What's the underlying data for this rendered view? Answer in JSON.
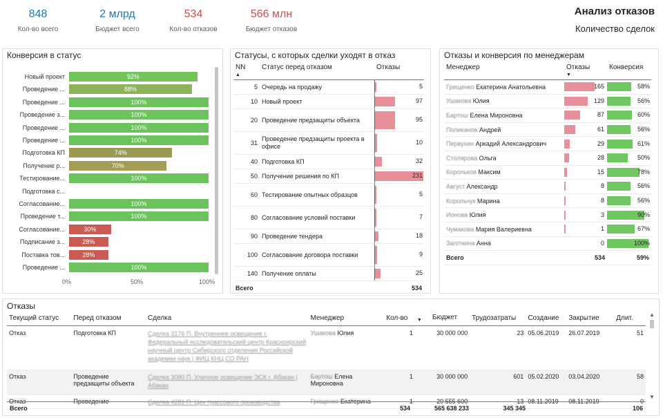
{
  "kpis": [
    {
      "value": "848",
      "label": "Кол-во всего",
      "color": "#1f77b4"
    },
    {
      "value": "2 млрд",
      "label": "Бюджет всего",
      "color": "#1f77b4"
    },
    {
      "value": "534",
      "label": "Кол-во отказов",
      "color": "#c0504d"
    },
    {
      "value": "566 млн",
      "label": "Бюджет отказов",
      "color": "#c0504d"
    }
  ],
  "header": {
    "title": "Анализ отказов",
    "subtitle": "Количество сделок"
  },
  "conversion": {
    "title": "Конверсия в статус",
    "axis": [
      "0%",
      "50%",
      "100%"
    ],
    "rows": [
      {
        "label": "Новый проект",
        "value": 92,
        "text": "92%",
        "color": "#72c45b"
      },
      {
        "label": "Проведение ...",
        "value": 88,
        "text": "88%",
        "color": "#8db35a"
      },
      {
        "label": "Проведение ...",
        "value": 100,
        "text": "100%",
        "color": "#6cc35d"
      },
      {
        "label": "Проведение з...",
        "value": 100,
        "text": "100%",
        "color": "#6cc35d"
      },
      {
        "label": "Проведение ...",
        "value": 100,
        "text": "100%",
        "color": "#6cc35d"
      },
      {
        "label": "Проведение ...",
        "value": 100,
        "text": "100%",
        "color": "#6cc35d"
      },
      {
        "label": "Подготовка КП",
        "value": 74,
        "text": "74%",
        "color": "#9a9a55"
      },
      {
        "label": "Получение р...",
        "value": 70,
        "text": "70%",
        "color": "#a49b55"
      },
      {
        "label": "Тестирование...",
        "value": 100,
        "text": "100%",
        "color": "#6cc35d"
      },
      {
        "label": "Подготовка с...",
        "value": 0,
        "text": "",
        "color": "#6cc35d"
      },
      {
        "label": "Согласование...",
        "value": 100,
        "text": "100%",
        "color": "#6cc35d"
      },
      {
        "label": "Проведение т...",
        "value": 100,
        "text": "100%",
        "color": "#6cc35d"
      },
      {
        "label": "Согласование...",
        "value": 30,
        "text": "30%",
        "color": "#c95b54"
      },
      {
        "label": "Подписание з...",
        "value": 28,
        "text": "28%",
        "color": "#c95b54"
      },
      {
        "label": "Поставка тов...",
        "value": 28,
        "text": "28%",
        "color": "#c95b54"
      },
      {
        "label": "Проведение ...",
        "value": 100,
        "text": "100%",
        "color": "#6cc35d"
      }
    ]
  },
  "statuses": {
    "title": "Статусы, с которых сделки уходят в отказ",
    "headers": [
      "NN",
      "Статус перед отказом",
      "Отказы"
    ],
    "max": 231,
    "rows": [
      {
        "nn": "5",
        "status": "Очередь на продажу",
        "value": 5
      },
      {
        "nn": "10",
        "status": "Новый проект",
        "value": 97
      },
      {
        "nn": "20",
        "status": "Проведение предзащиты объекта",
        "value": 95
      },
      {
        "nn": "31",
        "status": "Проведение предзащиты проекта в офисе",
        "value": 10
      },
      {
        "nn": "40",
        "status": "Подготовка КП",
        "value": 32
      },
      {
        "nn": "50",
        "status": "Получение решения по КП",
        "value": 231
      },
      {
        "nn": "60",
        "status": "Тестирование опытных образцов",
        "value": 5
      },
      {
        "nn": "80",
        "status": "Согласование условий поставки",
        "value": 7
      },
      {
        "nn": "90",
        "status": "Проведение тендера",
        "value": 18
      },
      {
        "nn": "100",
        "status": "Согласование договора поставки",
        "value": 9
      },
      {
        "nn": "140",
        "status": "Получение оплаты",
        "value": 25
      }
    ],
    "total_label": "Всего",
    "total": "534"
  },
  "managers": {
    "title": "Отказы и конверсия по менеджерам",
    "headers": [
      "Менеджер",
      "Отказы",
      "Конверсия"
    ],
    "max": 165,
    "rows": [
      {
        "hidden": "Грищенко",
        "name": "Екатерина Анатольевна",
        "value": 165,
        "conv": 58,
        "conv_text": "58%"
      },
      {
        "hidden": "Ушакова",
        "name": "Юлия",
        "value": 129,
        "conv": 56,
        "conv_text": "56%"
      },
      {
        "hidden": "Бартош",
        "name": "Елена Мироновна",
        "value": 87,
        "conv": 60,
        "conv_text": "60%"
      },
      {
        "hidden": "Поликанов",
        "name": "Андрей",
        "value": 61,
        "conv": 56,
        "conv_text": "56%"
      },
      {
        "hidden": "Первухин",
        "name": "Аркадий Александрович",
        "value": 29,
        "conv": 61,
        "conv_text": "61%"
      },
      {
        "hidden": "Столярова",
        "name": "Ольга",
        "value": 28,
        "conv": 50,
        "conv_text": "50%"
      },
      {
        "hidden": "Корольков",
        "name": "Максим",
        "value": 15,
        "conv": 78,
        "conv_text": "78%"
      },
      {
        "hidden": "Август",
        "name": "Александр",
        "value": 8,
        "conv": 56,
        "conv_text": "56%"
      },
      {
        "hidden": "Корольчук",
        "name": "Марина",
        "value": 8,
        "conv": 56,
        "conv_text": "56%"
      },
      {
        "hidden": "Ионова",
        "name": "Юлия",
        "value": 3,
        "conv": 90,
        "conv_text": "90%"
      },
      {
        "hidden": "Чумакова",
        "name": "Мария Валериевна",
        "value": 1,
        "conv": 67,
        "conv_text": "67%"
      },
      {
        "hidden": "Заготкина",
        "name": "Анна",
        "value": 0,
        "conv": 100,
        "conv_text": "100%"
      }
    ],
    "total_label": "Всего",
    "total": "534",
    "total_conv": "59%"
  },
  "refusals": {
    "title": "Отказы",
    "headers": [
      "Текущий статус",
      "Перед отказом",
      "Сделка",
      "Менеджер",
      "Кол-во",
      "Бюджет",
      "Трудозатраты",
      "Создание",
      "Закрытие",
      "Длит."
    ],
    "rows": [
      {
        "status": "Отказ",
        "before": "Подготовка КП",
        "deal": "Сделка 3176 П. Внутреннее освещение г. Федеральный исследовательский центр Красноярский научный центр Сибирского отделения Российской академии наук | ФИЦ КНЦ СО РАН",
        "mgr_hidden": "Ушакова",
        "mgr": "Юлия",
        "qty": "1",
        "budget": "30 000 000",
        "labor": "23",
        "created": "05.06.2019",
        "closed": "26.07.2019",
        "dur": "51"
      },
      {
        "status": "Отказ",
        "before": "Проведение предзащиты объекта",
        "deal": "Сделка 3080 П. Уличное освещение ЭСК г. Абакан | Абакан",
        "mgr_hidden": "Бартош",
        "mgr": "Елена Мироновна",
        "qty": "1",
        "budget": "30 000 000",
        "labor": "601",
        "created": "05.02.2020",
        "closed": "03.04.2020",
        "dur": "58"
      },
      {
        "status": "Отказ",
        "before": "Проведение",
        "deal": "Сделка 4281 П. Цех трассового производства",
        "mgr_hidden": "Грищенко",
        "mgr": "Екатерина",
        "qty": "1",
        "budget": "20 555 600",
        "labor": "13",
        "created": "08.11.2019",
        "closed": "08.11.2019",
        "dur": "0"
      }
    ],
    "total_label": "Всего",
    "totals": {
      "qty": "534",
      "budget": "565 638 233",
      "labor": "345 345",
      "dur": "106"
    }
  }
}
